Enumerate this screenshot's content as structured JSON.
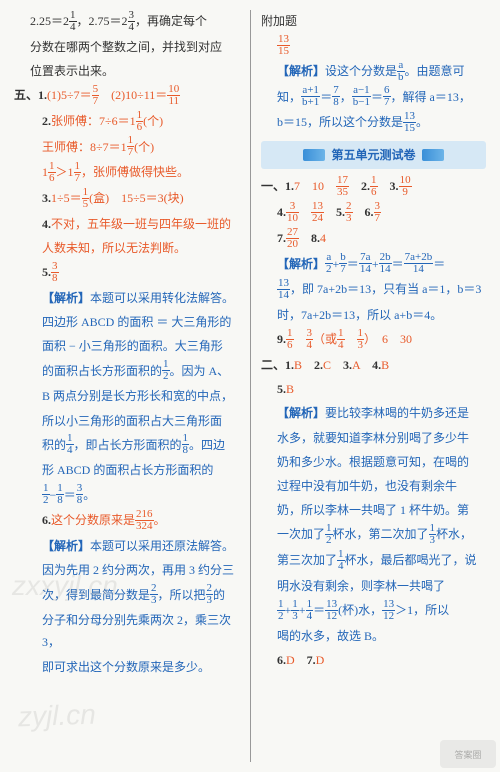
{
  "left": {
    "l1_a": "2.25＝2",
    "l1_frac1": {
      "n": "1",
      "d": "4"
    },
    "l1_b": "，2.75＝2",
    "l1_frac2": {
      "n": "3",
      "d": "4"
    },
    "l1_c": "，再确定每个",
    "l2": "分数在哪两个整数之间，并找到对应",
    "l3": "位置表示出来。",
    "sec5": "五、",
    "q1": "1.",
    "q1_a": "(1)5÷7＝",
    "q1_frac1": {
      "n": "5",
      "d": "7"
    },
    "q1_b": "　(2)10÷11＝",
    "q1_frac2": {
      "n": "10",
      "d": "11"
    },
    "q2": "2.",
    "q2_a": "张师傅：7÷6＝1",
    "q2_frac1": {
      "n": "1",
      "d": "6"
    },
    "q2_b": "(个)",
    "q2_c": "王师傅：8÷7＝1",
    "q2_frac2": {
      "n": "1",
      "d": "7"
    },
    "q2_d": "(个)",
    "q2_e": "1",
    "q2_frac3": {
      "n": "1",
      "d": "6"
    },
    "q2_f": "＞1",
    "q2_frac4": {
      "n": "1",
      "d": "7"
    },
    "q2_g": "，张师傅做得快些。",
    "q3": "3.",
    "q3_a": "1÷5＝",
    "q3_frac1": {
      "n": "1",
      "d": "5"
    },
    "q3_b": "(盒)　15÷5＝3(块)",
    "q4": "4.",
    "q4_a": "不对，五年级一班与四年级一班的",
    "q4_b": "人数未知，所以无法判断。",
    "q5": "5.",
    "q5_frac": {
      "n": "3",
      "d": "8"
    },
    "a5_label": "【解析】",
    "a5_1": "本题可以采用转化法解答。",
    "a5_2": "四边形 ABCD 的面积 ＝ 大三角形的",
    "a5_3": "面积 − 小三角形的面积。大三角形",
    "a5_4a": "的面积占长方形面积的",
    "a5_4frac": {
      "n": "1",
      "d": "2"
    },
    "a5_4b": "。因为 A、",
    "a5_5": "B 两点分别是长方形长和宽的中点，",
    "a5_6": "所以小三角形的面积占大三角形面",
    "a5_7a": "积的",
    "a5_7f1": {
      "n": "1",
      "d": "4"
    },
    "a5_7b": "，即占长方形面积的",
    "a5_7f2": {
      "n": "1",
      "d": "8"
    },
    "a5_7c": "。四边",
    "a5_8a": "形 ABCD 的面积占长方形面积的",
    "a5_9f1": {
      "n": "1",
      "d": "2"
    },
    "a5_9a": "−",
    "a5_9f2": {
      "n": "1",
      "d": "8"
    },
    "a5_9b": "＝",
    "a5_9f3": {
      "n": "3",
      "d": "8"
    },
    "a5_9c": "。",
    "q6": "6.",
    "q6_a": "这个分数原来是",
    "q6_frac": {
      "n": "216",
      "d": "324"
    },
    "q6_b": "。",
    "a6_label": "【解析】",
    "a6_1": "本题可以采用还原法解答。",
    "a6_2": "因为先用 2 约分两次，再用 3 约分三",
    "a6_3a": "次，得到最简分数是",
    "a6_3f1": {
      "n": "2",
      "d": "3"
    },
    "a6_3b": "，所以把",
    "a6_3f2": {
      "n": "2",
      "d": "3"
    },
    "a6_3c": "的",
    "a6_4": "分子和分母分别先乘两次 2，乘三次 3，",
    "a6_5": "即可求出这个分数原来是多少。"
  },
  "right": {
    "extra": "附加题",
    "ext_frac": {
      "n": "13",
      "d": "15"
    },
    "ext_label": "【解析】",
    "ext_1a": "设这个分数是",
    "ext_1f": {
      "n": "a",
      "d": "b"
    },
    "ext_1b": "。由题意可",
    "ext_2a": "知，",
    "ext_2f1": {
      "n": "a+1",
      "d": "b+1"
    },
    "ext_2b": "＝",
    "ext_2f2": {
      "n": "7",
      "d": "8"
    },
    "ext_2c": "，",
    "ext_2f3": {
      "n": "a−1",
      "d": "b−1"
    },
    "ext_2d": "＝",
    "ext_2f4": {
      "n": "6",
      "d": "7"
    },
    "ext_2e": "，解得 a＝13，",
    "ext_3a": "b＝15，所以这个分数是",
    "ext_3f": {
      "n": "13",
      "d": "15"
    },
    "ext_3b": "。",
    "unit_title": "第五单元测试卷",
    "sec1": "一、",
    "r1_1": "1.",
    "r1_1a": "7　10　",
    "r1_1f": {
      "n": "17",
      "d": "35"
    },
    "r1_2": "　2.",
    "r1_2f": {
      "n": "1",
      "d": "6"
    },
    "r1_3": "　3.",
    "r1_3f": {
      "n": "10",
      "d": "9"
    },
    "r1_4": "4.",
    "r1_4f1": {
      "n": "3",
      "d": "10"
    },
    "r1_4sp": "　",
    "r1_4f2": {
      "n": "13",
      "d": "24"
    },
    "r1_5": "　5.",
    "r1_5f": {
      "n": "2",
      "d": "3"
    },
    "r1_6": "　6.",
    "r1_6f": {
      "n": "3",
      "d": "7"
    },
    "r1_7": "7.",
    "r1_7f": {
      "n": "27",
      "d": "20"
    },
    "r1_8": "　8.",
    "r1_8a": "4",
    "a8_label": "【解析】",
    "a8_f1": {
      "n": "a",
      "d": "2"
    },
    "a8_a": "+",
    "a8_f2": {
      "n": "b",
      "d": "7"
    },
    "a8_b": "＝",
    "a8_f3": {
      "n": "7a",
      "d": "14"
    },
    "a8_c": "+",
    "a8_f4": {
      "n": "2b",
      "d": "14"
    },
    "a8_d": "＝",
    "a8_f5": {
      "n": "7a+2b",
      "d": "14"
    },
    "a8_e": "＝",
    "a8_2f": {
      "n": "13",
      "d": "14"
    },
    "a8_2a": "，即 7a+2b＝13，只有当 a＝1，b＝3",
    "a8_3": "时，7a+2b＝13，所以 a+b＝4。",
    "r1_9": "9.",
    "r1_9f1": {
      "n": "1",
      "d": "6"
    },
    "r1_9sp1": "　",
    "r1_9f2": {
      "n": "3",
      "d": "4"
    },
    "r1_9a": "（或",
    "r1_9f3": {
      "n": "1",
      "d": "4"
    },
    "r1_9b": "　",
    "r1_9f4": {
      "n": "1",
      "d": "3"
    },
    "r1_9c": "）　6　30",
    "sec2": "二、",
    "r2_1": "1.",
    "r2_1a": "B　",
    "r2_2": "2.",
    "r2_2a": "C　",
    "r2_3": "3.",
    "r2_3a": "A　",
    "r2_4": "4.",
    "r2_4a": "B",
    "r2_5": "5.",
    "r2_5a": "B",
    "a25_label": "【解析】",
    "a25_1": "要比较李林喝的牛奶多还是",
    "a25_2": "水多，就要知道李林分别喝了多少牛",
    "a25_3": "奶和多少水。根据题意可知，在喝的",
    "a25_4": "过程中没有加牛奶，也没有剩余牛",
    "a25_5": "奶，所以李林一共喝了 1 杯牛奶。第",
    "a25_6a": "一次加了",
    "a25_6f1": {
      "n": "1",
      "d": "2"
    },
    "a25_6b": "杯水，第二次加了",
    "a25_6f2": {
      "n": "1",
      "d": "3"
    },
    "a25_6c": "杯水，",
    "a25_7a": "第三次加了",
    "a25_7f": {
      "n": "1",
      "d": "4"
    },
    "a25_7b": "杯水，最后都喝光了，说",
    "a25_8": "明水没有剩余，则李林一共喝了",
    "a25_9f1": {
      "n": "1",
      "d": "2"
    },
    "a25_9a": "+",
    "a25_9f2": {
      "n": "1",
      "d": "3"
    },
    "a25_9b": "+",
    "a25_9f3": {
      "n": "1",
      "d": "4"
    },
    "a25_9c": "＝",
    "a25_9f4": {
      "n": "13",
      "d": "12"
    },
    "a25_9d": "(杯)水，",
    "a25_9f5": {
      "n": "13",
      "d": "12"
    },
    "a25_9e": "＞1，所以",
    "a25_10": "喝的水多，故选 B。",
    "r2_6": "6.",
    "r2_6a": "D　",
    "r2_7": "7.",
    "r2_7a": "D"
  }
}
